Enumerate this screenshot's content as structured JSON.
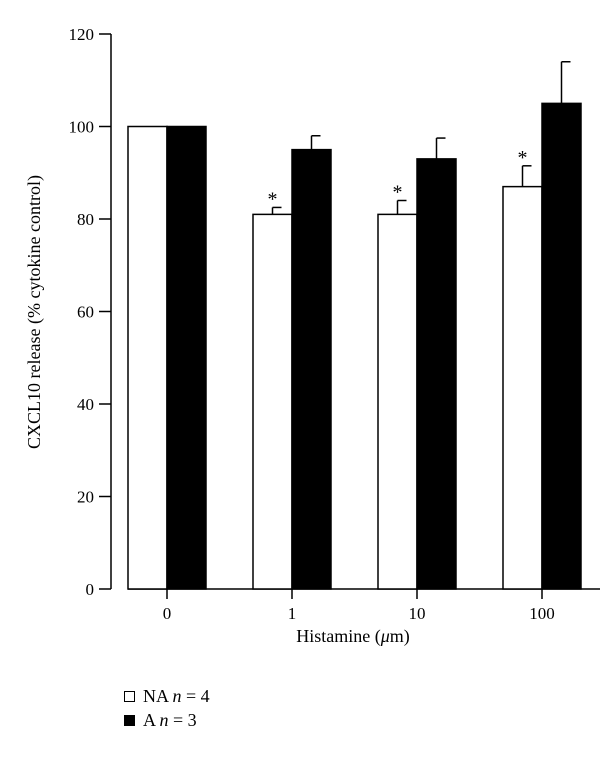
{
  "chart_data": {
    "type": "bar",
    "title": "",
    "xlabel_prefix": "Histamine (",
    "xlabel_unit_greek": "μ",
    "xlabel_unit_rest": "m)",
    "ylabel": "CXCL10 release (% cytokine control)",
    "ylim": [
      0,
      120
    ],
    "yticks": [
      0,
      20,
      40,
      60,
      80,
      100,
      120
    ],
    "categories": [
      "0",
      "1",
      "10",
      "100"
    ],
    "grid": false,
    "legend_position": "bottom-left",
    "series": [
      {
        "name": "NA",
        "n_label": "n",
        "n_value": "= 4",
        "fill": "#ffffff",
        "values": [
          100,
          81,
          81,
          87
        ],
        "errors": [
          0,
          1.5,
          3,
          4.5
        ],
        "significant": [
          false,
          true,
          true,
          true
        ]
      },
      {
        "name": "A",
        "n_label": "n",
        "n_value": "= 3",
        "fill": "#000000",
        "values": [
          100,
          95,
          93,
          105
        ],
        "errors": [
          0,
          3,
          4.5,
          9
        ],
        "significant": [
          false,
          false,
          false,
          false
        ]
      }
    ],
    "significance_marker": "*"
  }
}
